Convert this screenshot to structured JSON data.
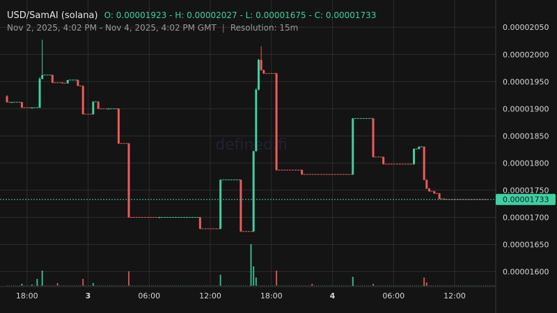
{
  "header": {
    "symbol": "USD/SamAI (solana)",
    "ohlc": "O: 0.00001923 - H: 0.00002027 - L: 0.00001675 - C: 0.00001733",
    "range": "Nov 2, 2025, 4:02 PM - Nov 4, 2025, 4:02 PM GMT",
    "separator": "|",
    "resolution": "Resolution: 15m"
  },
  "watermark": "defined.fi",
  "colors": {
    "background": "#141414",
    "up": "#3fd0a4",
    "down": "#ef5a5a",
    "grid": "#2c2c2c",
    "price_tag": "#3fd0a4"
  },
  "chart_data": {
    "type": "candlestick",
    "resolution": "15m",
    "ylim": [
      1.5725e-05,
      2.09e-05
    ],
    "y_ticks": [
      "0.00002050",
      "0.00002000",
      "0.00001950",
      "0.00001900",
      "0.00001850",
      "0.00001800",
      "0.00001750",
      "0.00001700",
      "0.00001650",
      "0.00001600"
    ],
    "x_ticks": [
      "18:00",
      "3",
      "06:00",
      "12:00",
      "18:00",
      "4",
      "06:00",
      "12:00"
    ],
    "bold_x_ticks": [
      "3",
      "4"
    ],
    "last_price": "0.00001733",
    "candles": [
      {
        "t": "Nov 2 16:02",
        "o": 1.923e-05,
        "h": 1.925e-05,
        "l": 1.911e-05,
        "c": 1.912e-05
      },
      {
        "t": "Nov 2 16:30",
        "o": 1.912e-05,
        "h": 1.913e-05,
        "l": 1.911e-05,
        "c": 1.912e-05
      },
      {
        "t": "Nov 2 17:30",
        "o": 1.912e-05,
        "h": 1.913e-05,
        "l": 1.902e-05,
        "c": 1.902e-05
      },
      {
        "t": "Nov 2 18:30",
        "o": 1.902e-05,
        "h": 1.903e-05,
        "l": 1.901e-05,
        "c": 1.902e-05
      },
      {
        "t": "Nov 2 19:15",
        "o": 1.902e-05,
        "h": 1.958e-05,
        "l": 1.901e-05,
        "c": 1.955e-05
      },
      {
        "t": "Nov 2 19:30",
        "o": 1.955e-05,
        "h": 2.027e-05,
        "l": 1.954e-05,
        "c": 1.962e-05
      },
      {
        "t": "Nov 2 20:30",
        "o": 1.962e-05,
        "h": 1.963e-05,
        "l": 1.947e-05,
        "c": 1.948e-05
      },
      {
        "t": "Nov 2 21:30",
        "o": 1.948e-05,
        "h": 1.949e-05,
        "l": 1.946e-05,
        "c": 1.947e-05
      },
      {
        "t": "Nov 2 22:00",
        "o": 1.947e-05,
        "h": 1.953e-05,
        "l": 1.946e-05,
        "c": 1.953e-05
      },
      {
        "t": "Nov 2 23:00",
        "o": 1.953e-05,
        "h": 1.954e-05,
        "l": 1.942e-05,
        "c": 1.942e-05
      },
      {
        "t": "Nov 2 23:30",
        "o": 1.942e-05,
        "h": 1.943e-05,
        "l": 1.889e-05,
        "c": 1.89e-05
      },
      {
        "t": "Nov 3 00:30",
        "o": 1.89e-05,
        "h": 1.914e-05,
        "l": 1.889e-05,
        "c": 1.913e-05
      },
      {
        "t": "Nov 3 01:00",
        "o": 1.913e-05,
        "h": 1.914e-05,
        "l": 1.899e-05,
        "c": 1.9e-05
      },
      {
        "t": "Nov 3 02:00",
        "o": 1.9e-05,
        "h": 1.901e-05,
        "l": 1.899e-05,
        "c": 1.9e-05
      },
      {
        "t": "Nov 3 03:00",
        "o": 1.9e-05,
        "h": 1.901e-05,
        "l": 1.835e-05,
        "c": 1.836e-05
      },
      {
        "t": "Nov 3 04:00",
        "o": 1.836e-05,
        "h": 1.837e-05,
        "l": 1.699e-05,
        "c": 1.7e-05
      },
      {
        "t": "Nov 3 07:00",
        "o": 1.7e-05,
        "h": 1.701e-05,
        "l": 1.699e-05,
        "c": 1.7e-05
      },
      {
        "t": "Nov 3 11:00",
        "o": 1.7e-05,
        "h": 1.701e-05,
        "l": 1.678e-05,
        "c": 1.679e-05
      },
      {
        "t": "Nov 3 13:00",
        "o": 1.679e-05,
        "h": 1.77e-05,
        "l": 1.678e-05,
        "c": 1.769e-05
      },
      {
        "t": "Nov 3 15:00",
        "o": 1.769e-05,
        "h": 1.77e-05,
        "l": 1.673e-05,
        "c": 1.674e-05
      },
      {
        "t": "Nov 3 16:15",
        "o": 1.674e-05,
        "h": 1.822e-05,
        "l": 1.673e-05,
        "c": 1.822e-05
      },
      {
        "t": "Nov 3 16:30",
        "o": 1.822e-05,
        "h": 1.938e-05,
        "l": 1.821e-05,
        "c": 1.935e-05
      },
      {
        "t": "Nov 3 16:45",
        "o": 1.935e-05,
        "h": 1.992e-05,
        "l": 1.934e-05,
        "c": 1.99e-05
      },
      {
        "t": "Nov 3 17:00",
        "o": 1.99e-05,
        "h": 2.015e-05,
        "l": 1.97e-05,
        "c": 1.971e-05
      },
      {
        "t": "Nov 3 17:15",
        "o": 1.971e-05,
        "h": 1.972e-05,
        "l": 1.964e-05,
        "c": 1.965e-05
      },
      {
        "t": "Nov 3 18:30",
        "o": 1.965e-05,
        "h": 1.966e-05,
        "l": 1.786e-05,
        "c": 1.787e-05
      },
      {
        "t": "Nov 3 21:00",
        "o": 1.787e-05,
        "h": 1.788e-05,
        "l": 1.778e-05,
        "c": 1.779e-05
      },
      {
        "t": "Nov 4 02:00",
        "o": 1.779e-05,
        "h": 1.883e-05,
        "l": 1.778e-05,
        "c": 1.882e-05
      },
      {
        "t": "Nov 4 04:00",
        "o": 1.882e-05,
        "h": 1.883e-05,
        "l": 1.81e-05,
        "c": 1.811e-05
      },
      {
        "t": "Nov 4 05:00",
        "o": 1.811e-05,
        "h": 1.812e-05,
        "l": 1.797e-05,
        "c": 1.798e-05
      },
      {
        "t": "Nov 4 08:00",
        "o": 1.798e-05,
        "h": 1.827e-05,
        "l": 1.797e-05,
        "c": 1.826e-05
      },
      {
        "t": "Nov 4 08:30",
        "o": 1.826e-05,
        "h": 1.831e-05,
        "l": 1.825e-05,
        "c": 1.83e-05
      },
      {
        "t": "Nov 4 09:00",
        "o": 1.83e-05,
        "h": 1.831e-05,
        "l": 1.768e-05,
        "c": 1.769e-05
      },
      {
        "t": "Nov 4 09:15",
        "o": 1.769e-05,
        "h": 1.77e-05,
        "l": 1.752e-05,
        "c": 1.753e-05
      },
      {
        "t": "Nov 4 09:30",
        "o": 1.753e-05,
        "h": 1.754e-05,
        "l": 1.747e-05,
        "c": 1.748e-05
      },
      {
        "t": "Nov 4 10:00",
        "o": 1.748e-05,
        "h": 1.749e-05,
        "l": 1.743e-05,
        "c": 1.744e-05
      },
      {
        "t": "Nov 4 10:30",
        "o": 1.744e-05,
        "h": 1.745e-05,
        "l": 1.733e-05,
        "c": 1.734e-05
      },
      {
        "t": "Nov 4 11:00",
        "o": 1.734e-05,
        "h": 1.735e-05,
        "l": 1.733e-05,
        "c": 1.733e-05
      }
    ],
    "volume_spikes": [
      {
        "t": "Nov 2 17:30",
        "v": 3,
        "dir": "up"
      },
      {
        "t": "Nov 2 18:30",
        "v": 2,
        "dir": "up"
      },
      {
        "t": "Nov 2 19:00",
        "v": 10,
        "dir": "up"
      },
      {
        "t": "Nov 2 19:30",
        "v": 22,
        "dir": "up"
      },
      {
        "t": "Nov 2 21:00",
        "v": 4,
        "dir": "down"
      },
      {
        "t": "Nov 2 23:30",
        "v": 10,
        "dir": "down"
      },
      {
        "t": "Nov 3 00:30",
        "v": 4,
        "dir": "up"
      },
      {
        "t": "Nov 3 04:00",
        "v": 21,
        "dir": "down"
      },
      {
        "t": "Nov 3 13:00",
        "v": 16,
        "dir": "up"
      },
      {
        "t": "Nov 3 16:00",
        "v": 60,
        "dir": "up"
      },
      {
        "t": "Nov 3 16:15",
        "v": 28,
        "dir": "up"
      },
      {
        "t": "Nov 3 16:30",
        "v": 12,
        "dir": "up"
      },
      {
        "t": "Nov 3 18:30",
        "v": 22,
        "dir": "down"
      },
      {
        "t": "Nov 3 22:00",
        "v": 3,
        "dir": "down"
      },
      {
        "t": "Nov 4 02:00",
        "v": 13,
        "dir": "up"
      },
      {
        "t": "Nov 4 04:00",
        "v": 3,
        "dir": "down"
      },
      {
        "t": "Nov 4 09:00",
        "v": 12,
        "dir": "down"
      },
      {
        "t": "Nov 4 09:15",
        "v": 5,
        "dir": "down"
      }
    ]
  }
}
